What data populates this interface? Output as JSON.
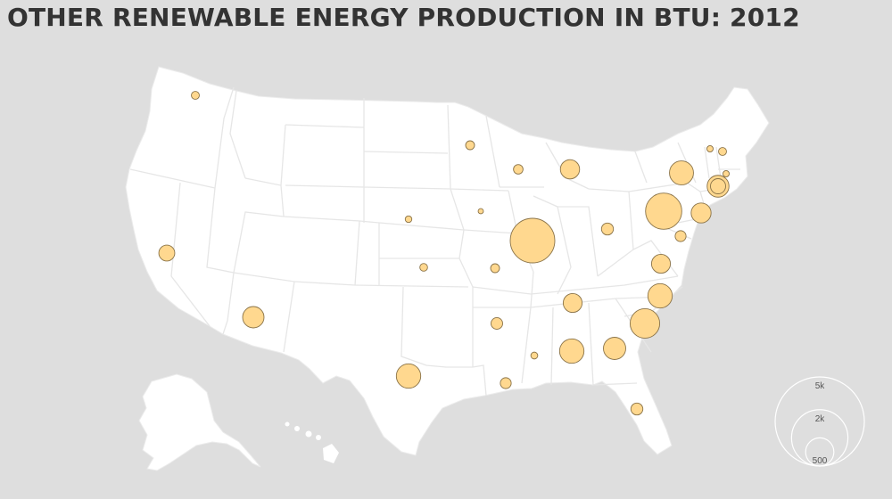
{
  "title": "OTHER RENEWABLE ENERGY PRODUCTION IN BTU: 2012",
  "colors": {
    "background": "#dedede",
    "land": "#ffffff",
    "state_borders": "#e9e9e9",
    "bubble_fill": "#ffd88f",
    "bubble_stroke": "#8a7348",
    "title": "#333333"
  },
  "legend": {
    "items": [
      {
        "label": "5k",
        "value": 5000
      },
      {
        "label": "2k",
        "value": 2000
      },
      {
        "label": "500",
        "value": 500
      }
    ]
  },
  "states": [
    {
      "state": "WA",
      "value": 160
    },
    {
      "state": "CA",
      "value": 640
    },
    {
      "state": "AZ",
      "value": 1150
    },
    {
      "state": "TX",
      "value": 1500
    },
    {
      "state": "NE",
      "value": 110
    },
    {
      "state": "KS",
      "value": 150
    },
    {
      "state": "MN",
      "value": 200
    },
    {
      "state": "IA",
      "value": 70
    },
    {
      "state": "MO",
      "value": 200
    },
    {
      "state": "AR",
      "value": 340
    },
    {
      "state": "LA",
      "value": 300
    },
    {
      "state": "MS",
      "value": 120
    },
    {
      "state": "WI",
      "value": 230
    },
    {
      "state": "MI",
      "value": 930
    },
    {
      "state": "IL",
      "value": 5000
    },
    {
      "state": "OH",
      "value": 360
    },
    {
      "state": "KY",
      "value": 900
    },
    {
      "state": "TN",
      "value": 900
    },
    {
      "state": "AL",
      "value": 1500
    },
    {
      "state": "GA",
      "value": 1250
    },
    {
      "state": "FL",
      "value": 360
    },
    {
      "state": "NC",
      "value": 1500
    },
    {
      "state": "SC",
      "value": 2200
    },
    {
      "state": "VA",
      "value": 1000
    },
    {
      "state": "PA",
      "value": 3300
    },
    {
      "state": "NY",
      "value": 1450
    },
    {
      "state": "NJ",
      "value": 1200
    },
    {
      "state": "MD",
      "value": 300
    },
    {
      "state": "VT",
      "value": 100
    },
    {
      "state": "NH",
      "value": 160
    },
    {
      "state": "MA",
      "value": 100
    },
    {
      "state": "CT",
      "value": 580
    }
  ]
}
